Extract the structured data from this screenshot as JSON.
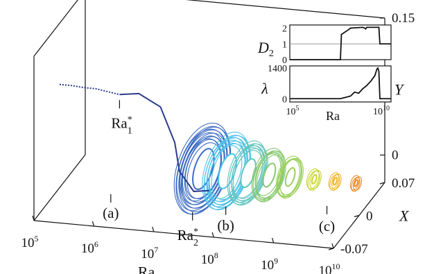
{
  "chart_data": [
    {
      "type": "scatter",
      "projection": "3d",
      "x_axis": {
        "label": "Ra",
        "scale": "log",
        "ticks": [
          {
            "base": "10",
            "exp": "5"
          },
          {
            "base": "10",
            "exp": "6"
          },
          {
            "base": "10",
            "exp": "7"
          },
          {
            "base": "10",
            "exp": "8"
          },
          {
            "base": "10",
            "exp": "9"
          },
          {
            "base": "10",
            "exp": "10"
          }
        ],
        "range": [
          100000,
          10000000000
        ]
      },
      "depth_axis": {
        "label": "X",
        "tick_labels": [
          "0.07",
          "0",
          "-0.07"
        ],
        "range": [
          -0.07,
          0.07
        ]
      },
      "y_axis": {
        "label": "Y",
        "tick_labels": [
          "0.15",
          "0"
        ],
        "range": [
          -0.03,
          0.15
        ]
      },
      "annotations": [
        {
          "id": "ra1",
          "base": "Ra",
          "sub": "1",
          "sup": "*"
        },
        {
          "id": "ra2",
          "base": "Ra",
          "sub": "2",
          "sup": "*"
        },
        {
          "id": "a",
          "text": "(a)"
        },
        {
          "id": "b",
          "text": "(b)"
        },
        {
          "id": "c",
          "text": "(c)"
        }
      ],
      "series": [
        {
          "kind": "fixed-point-branch",
          "log10_ra": [
            5.0,
            5.2,
            5.4,
            5.6,
            5.8,
            6.0
          ],
          "y": [
            0.083,
            0.083,
            0.082,
            0.082,
            0.08,
            0.078
          ],
          "x": [
            0,
            0,
            0,
            0,
            0,
            0
          ],
          "color": "#2a3a8c"
        },
        {
          "kind": "limit-cycle-branch",
          "log10_ra": [
            6.0,
            6.2,
            6.5,
            6.8,
            7.0,
            7.3,
            7.5
          ],
          "y": [
            0.078,
            0.07,
            0.052,
            0.02,
            0.0,
            -0.015,
            -0.018
          ],
          "x": [
            0.0,
            0.02,
            0.03,
            0.02,
            0.0,
            -0.01,
            0.0
          ],
          "color": "#2a3a8c"
        }
      ],
      "attractors": [
        {
          "log10_ra": 7.4,
          "size": 1.0,
          "color": "#3c6bc4"
        },
        {
          "log10_ra": 7.8,
          "size": 0.85,
          "color": "#4cc2ea"
        },
        {
          "log10_ra": 8.15,
          "size": 0.7,
          "color": "#62c6be"
        },
        {
          "log10_ra": 8.5,
          "size": 0.58,
          "color": "#88c870"
        },
        {
          "log10_ra": 8.85,
          "size": 0.45,
          "color": "#9bcf5a"
        },
        {
          "log10_ra": 9.25,
          "size": 0.22,
          "color": "#c8d42a"
        },
        {
          "log10_ra": 9.6,
          "size": 0.18,
          "color": "#f0b428"
        },
        {
          "log10_ra": 9.95,
          "size": 0.16,
          "color": "#ee8a2a"
        }
      ]
    },
    {
      "type": "line",
      "id": "inset-d2",
      "ylabel": {
        "base": "D",
        "sub": "2"
      },
      "ytick_labels": [
        "2",
        "1",
        "0"
      ],
      "ylim": [
        0,
        2.2
      ],
      "reference_line": 1,
      "log10_x": [
        5.0,
        6.0,
        7.0,
        7.5,
        7.55,
        7.9,
        8.0,
        8.6,
        8.7,
        8.75,
        8.8,
        9.0,
        9.2,
        9.4,
        9.45,
        10.0
      ],
      "values": [
        0,
        0,
        0,
        0,
        1.6,
        1.9,
        2.0,
        2.05,
        2.0,
        1.95,
        2.05,
        2.05,
        2.05,
        2.05,
        1.0,
        1.0
      ]
    },
    {
      "type": "line",
      "id": "inset-lambda",
      "ylabel": "λ",
      "ytick_labels": [
        "1400",
        "0"
      ],
      "ylim": [
        -150,
        1500
      ],
      "xlabel": "Ra",
      "xtick_labels": [
        {
          "base": "10",
          "exp": "5"
        },
        {
          "base": "10",
          "exp": "10"
        }
      ],
      "log10_x": [
        5.0,
        6.0,
        7.0,
        7.5,
        7.7,
        8.0,
        8.2,
        8.4,
        8.6,
        8.8,
        9.0,
        9.2,
        9.3,
        9.35,
        9.4,
        9.45,
        10.0
      ],
      "values": [
        0,
        0,
        0,
        0,
        50,
        120,
        300,
        250,
        450,
        600,
        800,
        1050,
        1350,
        1400,
        1250,
        0,
        0
      ]
    }
  ]
}
